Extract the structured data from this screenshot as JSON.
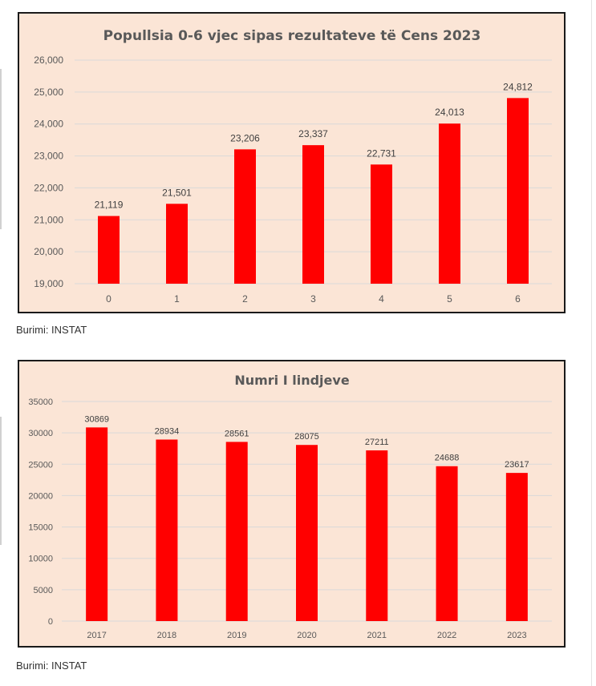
{
  "chart_data": [
    {
      "type": "bar",
      "title": "Popullsia 0-6 vjec sipas rezultateve të Cens 2023",
      "xlabel": "",
      "ylabel": "",
      "categories": [
        "0",
        "1",
        "2",
        "3",
        "4",
        "5",
        "6"
      ],
      "values": [
        21119,
        21501,
        23206,
        23337,
        22731,
        24013,
        24812
      ],
      "value_labels": [
        "21,119",
        "21,501",
        "23,206",
        "23,337",
        "22,731",
        "24,013",
        "24,812"
      ],
      "ylim": [
        19000,
        26000
      ],
      "yticks": [
        19000,
        20000,
        21000,
        22000,
        23000,
        24000,
        25000,
        26000
      ],
      "ytick_labels": [
        "19,000",
        "20,000",
        "21,000",
        "22,000",
        "23,000",
        "24,000",
        "25,000",
        "26,000"
      ],
      "grid": true,
      "legend": "none",
      "bar_color": "#ff0000",
      "background": "#fbe5d6"
    },
    {
      "type": "bar",
      "title": "Numri I lindjeve",
      "xlabel": "",
      "ylabel": "",
      "categories": [
        "2017",
        "2018",
        "2019",
        "2020",
        "2021",
        "2022",
        "2023"
      ],
      "values": [
        30869,
        28934,
        28561,
        28075,
        27211,
        24688,
        23617
      ],
      "value_labels": [
        "30869",
        "28934",
        "28561",
        "28075",
        "27211",
        "24688",
        "23617"
      ],
      "ylim": [
        0,
        35000
      ],
      "yticks": [
        0,
        5000,
        10000,
        15000,
        20000,
        25000,
        30000,
        35000
      ],
      "ytick_labels": [
        "0",
        "5000",
        "10000",
        "15000",
        "20000",
        "25000",
        "30000",
        "35000"
      ],
      "grid": true,
      "legend": "none",
      "bar_color": "#ff0000",
      "background": "#fbe5d6"
    }
  ],
  "sources": [
    "Burimi: INSTAT",
    "Burimi: INSTAT"
  ],
  "colors": {
    "gridline": "#d9d9d9",
    "text": "#595959"
  }
}
